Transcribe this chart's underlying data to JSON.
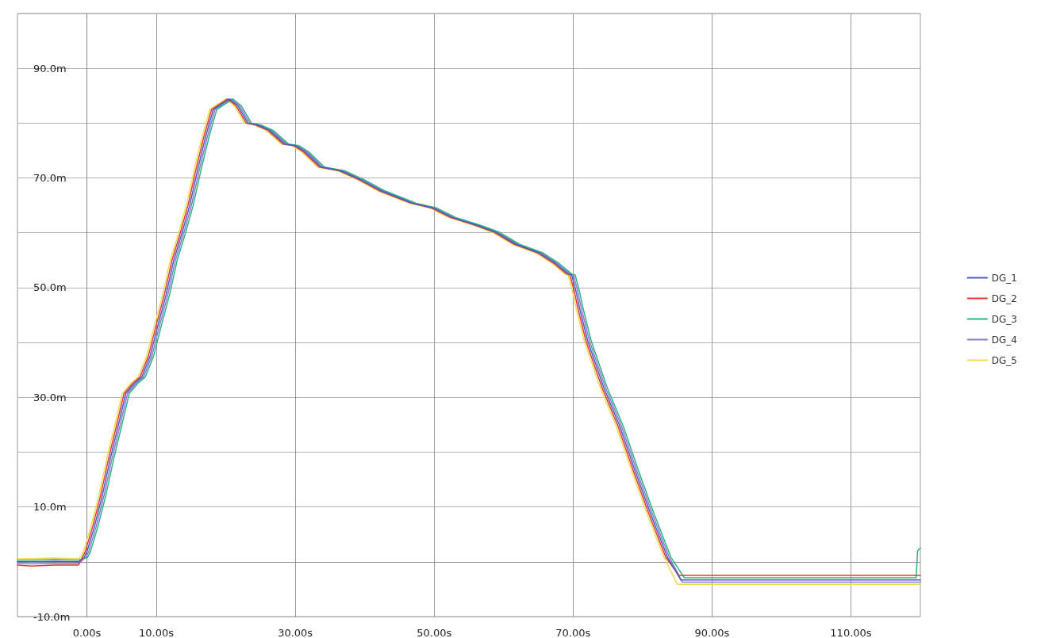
{
  "chart_data": {
    "type": "line",
    "legend": "right",
    "grid": true,
    "line_style": "solid",
    "marker": "none",
    "xlim": [
      -10,
      120
    ],
    "ylim": [
      -10,
      100
    ],
    "xticks": [
      {
        "value": 0,
        "label": "0.00s"
      },
      {
        "value": 10,
        "label": "10.00s"
      },
      {
        "value": 30,
        "label": "30.00s"
      },
      {
        "value": 50,
        "label": "50.00s"
      },
      {
        "value": 70,
        "label": "70.00s"
      },
      {
        "value": 90,
        "label": "90.00s"
      },
      {
        "value": 110,
        "label": "110.00s"
      }
    ],
    "yticks": [
      {
        "value": -10,
        "label": "-10.0m"
      },
      {
        "value": 0,
        "label": null
      },
      {
        "value": 10,
        "label": "10.0m"
      },
      {
        "value": 20,
        "label": null
      },
      {
        "value": 30,
        "label": "30.0m"
      },
      {
        "value": 40,
        "label": null
      },
      {
        "value": 50,
        "label": "50.0m"
      },
      {
        "value": 60,
        "label": null
      },
      {
        "value": 70,
        "label": "70.0m"
      },
      {
        "value": 80,
        "label": null
      },
      {
        "value": 90,
        "label": "90.0m"
      },
      {
        "value": 100,
        "label": null
      }
    ],
    "series": [
      {
        "name": "DG_1",
        "color": "#4a5bc4",
        "x": [
          -10,
          -8,
          -4.6,
          -1.2,
          -0.4,
          0,
          1.1,
          2.2,
          3.4,
          4.5,
          5.6,
          6.8,
          7.9,
          9.1,
          10.2,
          11.4,
          12.5,
          13.7,
          14.8,
          15.9,
          17.1,
          18.2,
          20.5,
          21.7,
          23.2,
          24.5,
          26.3,
          28.5,
          30,
          31.4,
          33.7,
          36.6,
          39.4,
          42.3,
          46.9,
          49.9,
          52.6,
          56.1,
          58.9,
          61.8,
          65.2,
          67.5,
          69.3,
          69.8,
          70.4,
          71,
          72.1,
          74.4,
          76.7,
          79,
          81.2,
          83.6,
          85.5,
          90,
          95,
          100,
          105,
          110,
          115,
          119.4,
          119.6,
          120
        ],
        "values": [
          0,
          0,
          0.1,
          0,
          0.8,
          1.8,
          6.5,
          12,
          19,
          24.8,
          30.7,
          32.5,
          33.7,
          37.5,
          43,
          48.7,
          55,
          60,
          65,
          71.3,
          77.6,
          82.5,
          84.4,
          83.2,
          80,
          79.7,
          78.7,
          76.2,
          75.9,
          74.8,
          72,
          71.3,
          69.7,
          67.7,
          65.4,
          64.5,
          62.8,
          61.4,
          60.1,
          57.9,
          56.3,
          54.4,
          52.5,
          52.3,
          49.4,
          45.9,
          40.3,
          31.8,
          24.8,
          16.3,
          8.6,
          0.8,
          -3.3,
          -3.3,
          -3.3,
          -3.3,
          -3.3,
          -3.3,
          -3.3,
          -3.3,
          -3.3,
          -3.3
        ]
      },
      {
        "name": "DG_2",
        "color": "#e03c31",
        "x": [
          -10,
          -8,
          -4.6,
          -1.2,
          -0.65,
          -0.25,
          0.85,
          1.95,
          3.15,
          4.25,
          5.35,
          6.55,
          7.65,
          8.85,
          9.95,
          11.15,
          12.25,
          13.45,
          14.55,
          15.65,
          16.85,
          17.95,
          20.25,
          21.45,
          22.95,
          24.25,
          26.05,
          28.25,
          29.75,
          31.15,
          33.45,
          36.35,
          39.15,
          42.05,
          46.65,
          49.65,
          52.35,
          55.85,
          58.65,
          61.55,
          64.95,
          67.25,
          69.05,
          69.55,
          70.15,
          70.75,
          71.85,
          74.15,
          76.45,
          78.75,
          80.95,
          83.35,
          85.25,
          90,
          95,
          100,
          105,
          110,
          115,
          119.4,
          119.6,
          120
        ],
        "values": [
          -0.6,
          -0.8,
          -0.6,
          -0.6,
          0.8,
          1.8,
          6.5,
          12,
          19,
          24.8,
          30.7,
          32.5,
          33.7,
          37.5,
          43,
          48.7,
          55,
          60,
          65,
          71.3,
          77.6,
          82.5,
          84.4,
          83.2,
          80,
          79.7,
          78.7,
          76.2,
          75.9,
          74.8,
          72,
          71.3,
          69.7,
          67.7,
          65.4,
          64.5,
          62.8,
          61.4,
          60.1,
          57.9,
          56.3,
          54.4,
          52.5,
          52.3,
          49.4,
          45.9,
          40.3,
          31.8,
          24.8,
          16.3,
          8.6,
          0.8,
          -2.5,
          -2.5,
          -2.5,
          -2.5,
          -2.5,
          -2.5,
          -2.5,
          -2.5,
          -2.5,
          -2.5
        ]
      },
      {
        "name": "DG_3",
        "color": "#2bb58a",
        "x": [
          -10,
          -8,
          -4.6,
          -1.2,
          0.1,
          0.5,
          1.6,
          2.7,
          3.9,
          5,
          6.1,
          7.3,
          8.4,
          9.6,
          10.7,
          11.9,
          13,
          14.2,
          15.3,
          16.4,
          17.6,
          18.7,
          21,
          22.2,
          23.7,
          25,
          26.8,
          29,
          30.5,
          31.9,
          34.2,
          37.1,
          39.9,
          42.8,
          47.4,
          50.4,
          53.1,
          56.6,
          59.4,
          62.3,
          65.7,
          68,
          69.8,
          70.3,
          70.9,
          71.5,
          72.6,
          74.9,
          77.2,
          79.5,
          81.7,
          84.1,
          86,
          90,
          95,
          100,
          105,
          110,
          115,
          119.4,
          119.6,
          120
        ],
        "values": [
          0.3,
          0.3,
          0.4,
          0.3,
          0.8,
          1.8,
          6.5,
          12,
          19,
          24.8,
          30.7,
          32.5,
          33.7,
          37.5,
          43,
          48.7,
          55,
          60,
          65,
          71.3,
          77.6,
          82.5,
          84.4,
          83.2,
          80,
          79.7,
          78.7,
          76.2,
          75.9,
          74.8,
          72,
          71.3,
          69.7,
          67.7,
          65.4,
          64.5,
          62.8,
          61.4,
          60.1,
          57.9,
          56.3,
          54.4,
          52.5,
          52.3,
          49.4,
          45.9,
          40.3,
          31.8,
          24.8,
          16.3,
          8.6,
          0.8,
          -2.9,
          -2.9,
          -2.9,
          -2.9,
          -2.9,
          -2.9,
          -2.9,
          -2.9,
          2,
          2.5
        ]
      },
      {
        "name": "DG_4",
        "color": "#8e7cc3",
        "x": [
          -10,
          -8,
          -4.6,
          -1.2,
          -0.15,
          0.25,
          1.35,
          2.45,
          3.65,
          4.75,
          5.85,
          7.05,
          8.15,
          9.35,
          10.45,
          11.65,
          12.75,
          13.95,
          15.05,
          16.15,
          17.35,
          18.45,
          20.75,
          21.95,
          23.45,
          24.75,
          26.55,
          28.75,
          30.25,
          31.65,
          33.95,
          36.85,
          39.65,
          42.55,
          47.15,
          50.15,
          52.85,
          56.35,
          59.15,
          62.05,
          65.45,
          67.75,
          69.55,
          70.05,
          70.65,
          71.25,
          72.35,
          74.65,
          76.95,
          79.25,
          81.45,
          83.85,
          85.75,
          90,
          95,
          100,
          105,
          110,
          115,
          119.4,
          119.6,
          120
        ],
        "values": [
          -0.3,
          -0.4,
          -0.3,
          -0.3,
          0.8,
          1.8,
          6.5,
          12,
          19,
          24.8,
          30.7,
          32.5,
          33.7,
          37.5,
          43,
          48.7,
          55,
          60,
          65,
          71.3,
          77.6,
          82.5,
          84.4,
          83.2,
          80,
          79.7,
          78.7,
          76.2,
          75.9,
          74.8,
          72,
          71.3,
          69.7,
          67.7,
          65.4,
          64.5,
          62.8,
          61.4,
          60.1,
          57.9,
          56.3,
          54.4,
          52.5,
          52.3,
          49.4,
          45.9,
          40.3,
          31.8,
          24.8,
          16.3,
          8.6,
          0.8,
          -3.7,
          -3.7,
          -3.7,
          -3.7,
          -3.7,
          -3.7,
          -3.7,
          -3.7,
          -3.7,
          -3.7
        ]
      },
      {
        "name": "DG_5",
        "color": "#f2dc4a",
        "x": [
          -10,
          -8,
          -4.6,
          -1.2,
          -0.9,
          -0.5,
          0.6,
          1.7,
          2.9,
          4,
          5.1,
          6.3,
          7.4,
          8.6,
          9.7,
          10.9,
          12,
          13.2,
          14.3,
          15.4,
          16.6,
          17.7,
          20,
          21.2,
          22.7,
          24,
          25.8,
          28,
          29.5,
          30.9,
          33.2,
          36.1,
          38.9,
          41.8,
          46.4,
          49.4,
          52.1,
          55.6,
          58.4,
          61.3,
          64.7,
          67,
          68.8,
          69.3,
          69.9,
          70.5,
          71.6,
          73.9,
          76.2,
          78.5,
          80.7,
          83.1,
          85,
          90,
          95,
          100,
          105,
          110,
          115,
          119.4,
          119.6,
          120
        ],
        "values": [
          0.6,
          0.6,
          0.7,
          0.6,
          0.8,
          1.8,
          6.5,
          12,
          19,
          24.8,
          30.7,
          32.5,
          33.7,
          37.5,
          43,
          48.7,
          55,
          60,
          65,
          71.3,
          77.6,
          82.5,
          84.4,
          83.2,
          80,
          79.7,
          78.7,
          76.2,
          75.9,
          74.8,
          72,
          71.3,
          69.7,
          67.7,
          65.4,
          64.5,
          62.8,
          61.4,
          60.1,
          57.9,
          56.3,
          54.4,
          52.5,
          52.3,
          49.4,
          45.9,
          40.3,
          31.8,
          24.8,
          16.3,
          8.6,
          0.8,
          -4.1,
          -4.1,
          -4.1,
          -4.1,
          -4.1,
          -4.1,
          -4.1,
          -4.1,
          -4.1,
          -4.1
        ]
      }
    ]
  }
}
